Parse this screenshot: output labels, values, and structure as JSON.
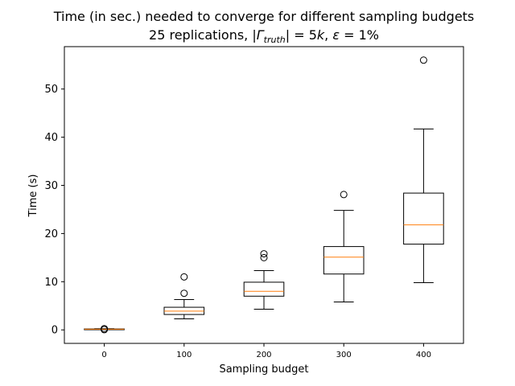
{
  "chart_data": {
    "type": "box",
    "title_line1": "Time (in sec.) needed to converge for different sampling budgets",
    "title_line2": {
      "prefix": "25 replications, ",
      "gamma_bar": "|",
      "gamma": "Γ",
      "gamma_sub": "truth",
      "gamma_bar_close": "|",
      "eq1": " = 5",
      "k": "k",
      "sep": ", ",
      "eps": "ε",
      "eq2": " = 1%"
    },
    "xlabel": "Sampling budget",
    "ylabel": "Time (s)",
    "x_ticks": [
      "0",
      "100",
      "200",
      "300",
      "400"
    ],
    "y_ticks": [
      0,
      10,
      20,
      30,
      40,
      50
    ],
    "ylim": [
      -2.8,
      58.8
    ],
    "xlim": [
      -50,
      450
    ],
    "box_width": 50,
    "series": [
      {
        "x": 0,
        "whisker_low": 0.05,
        "q1": 0.1,
        "median": 0.15,
        "q3": 0.2,
        "whisker_high": 0.25,
        "outliers": [
          0.25,
          0.05
        ]
      },
      {
        "x": 100,
        "whisker_low": 2.3,
        "q1": 3.2,
        "median": 3.9,
        "q3": 4.7,
        "whisker_high": 6.3,
        "outliers": [
          11.0,
          7.6
        ]
      },
      {
        "x": 200,
        "whisker_low": 4.3,
        "q1": 7.0,
        "median": 8.0,
        "q3": 9.9,
        "whisker_high": 12.3,
        "outliers": [
          15.0,
          15.8
        ]
      },
      {
        "x": 300,
        "whisker_low": 5.8,
        "q1": 11.6,
        "median": 15.1,
        "q3": 17.3,
        "whisker_high": 24.8,
        "outliers": [
          28.1
        ]
      },
      {
        "x": 400,
        "whisker_low": 9.8,
        "q1": 17.8,
        "median": 21.8,
        "q3": 28.4,
        "whisker_high": 41.7,
        "outliers": [
          56.0
        ]
      }
    ],
    "colors": {
      "box": "#000000",
      "median": "#ff7f0e",
      "outlier_edge": "#000000"
    },
    "grid": false
  }
}
